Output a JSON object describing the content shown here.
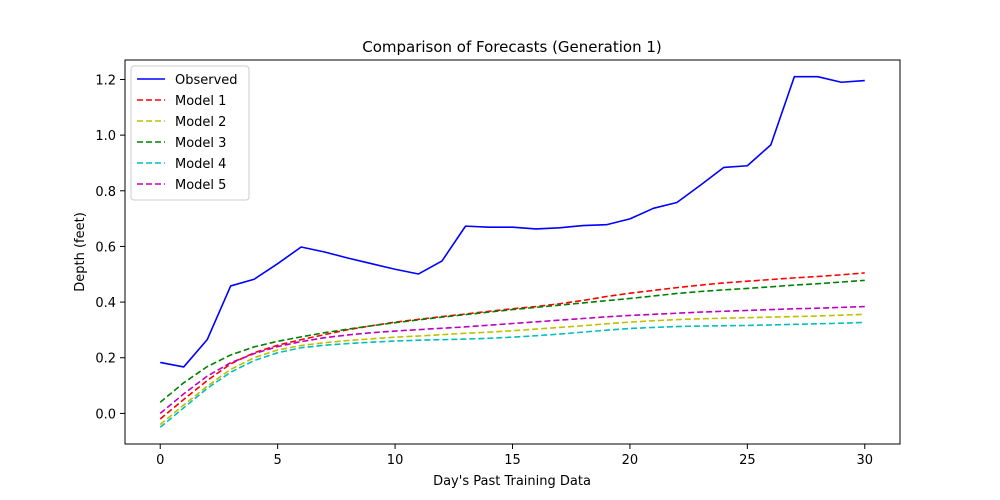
{
  "chart_data": {
    "type": "line",
    "title": "Comparison of Forecasts (Generation 1)",
    "xlabel": "Day's Past Training Data",
    "ylabel": "Depth (feet)",
    "xlim": [
      -1.5,
      31.5
    ],
    "ylim": [
      -0.11,
      1.27
    ],
    "xticks": [
      0,
      5,
      10,
      15,
      20,
      25,
      30
    ],
    "yticks": [
      0.0,
      0.2,
      0.4,
      0.6,
      0.8,
      1.0,
      1.2
    ],
    "grid": false,
    "legend_position": "top-left",
    "x": [
      0,
      1,
      2,
      3,
      4,
      5,
      6,
      7,
      8,
      9,
      10,
      11,
      12,
      13,
      14,
      15,
      16,
      17,
      18,
      19,
      20,
      21,
      22,
      23,
      24,
      25,
      26,
      27,
      28,
      29,
      30
    ],
    "series": [
      {
        "name": "Observed",
        "color": "#0000ff",
        "dash": "solid",
        "values": [
          0.183,
          0.167,
          0.265,
          0.458,
          0.482,
          0.538,
          0.598,
          0.58,
          0.558,
          0.538,
          0.518,
          0.501,
          0.548,
          0.673,
          0.669,
          0.669,
          0.663,
          0.667,
          0.675,
          0.678,
          0.699,
          0.737,
          0.758,
          0.82,
          0.884,
          0.89,
          0.965,
          1.21,
          1.21,
          1.19,
          1.196
        ]
      },
      {
        "name": "Model 1",
        "color": "#ff0000",
        "dash": "dashed",
        "values": [
          -0.02,
          0.05,
          0.118,
          0.178,
          0.218,
          0.245,
          0.265,
          0.283,
          0.301,
          0.315,
          0.328,
          0.338,
          0.348,
          0.357,
          0.367,
          0.376,
          0.384,
          0.394,
          0.406,
          0.42,
          0.432,
          0.442,
          0.452,
          0.461,
          0.469,
          0.475,
          0.481,
          0.487,
          0.492,
          0.498,
          0.505
        ]
      },
      {
        "name": "Model 2",
        "color": "#bfbf00",
        "dash": "dashed",
        "values": [
          -0.04,
          0.03,
          0.098,
          0.158,
          0.2,
          0.228,
          0.244,
          0.254,
          0.262,
          0.268,
          0.274,
          0.278,
          0.283,
          0.288,
          0.292,
          0.297,
          0.303,
          0.309,
          0.315,
          0.322,
          0.328,
          0.333,
          0.337,
          0.34,
          0.342,
          0.344,
          0.346,
          0.348,
          0.35,
          0.353,
          0.356
        ]
      },
      {
        "name": "Model 3",
        "color": "#008000",
        "dash": "dashed",
        "values": [
          0.04,
          0.11,
          0.168,
          0.21,
          0.239,
          0.259,
          0.275,
          0.29,
          0.303,
          0.315,
          0.326,
          0.336,
          0.346,
          0.355,
          0.364,
          0.373,
          0.381,
          0.389,
          0.397,
          0.405,
          0.413,
          0.422,
          0.431,
          0.438,
          0.444,
          0.449,
          0.455,
          0.461,
          0.466,
          0.472,
          0.478
        ]
      },
      {
        "name": "Model 4",
        "color": "#00bfbf",
        "dash": "dashed",
        "values": [
          -0.05,
          0.02,
          0.09,
          0.148,
          0.19,
          0.218,
          0.236,
          0.245,
          0.251,
          0.256,
          0.26,
          0.263,
          0.265,
          0.267,
          0.27,
          0.274,
          0.279,
          0.285,
          0.292,
          0.299,
          0.305,
          0.309,
          0.312,
          0.314,
          0.315,
          0.316,
          0.318,
          0.32,
          0.322,
          0.324,
          0.327
        ]
      },
      {
        "name": "Model 5",
        "color": "#bf00bf",
        "dash": "dashed",
        "values": [
          0.0,
          0.07,
          0.134,
          0.182,
          0.215,
          0.24,
          0.258,
          0.272,
          0.282,
          0.29,
          0.296,
          0.301,
          0.306,
          0.311,
          0.317,
          0.323,
          0.329,
          0.335,
          0.341,
          0.347,
          0.352,
          0.356,
          0.36,
          0.364,
          0.367,
          0.37,
          0.373,
          0.376,
          0.378,
          0.381,
          0.384
        ]
      }
    ]
  }
}
